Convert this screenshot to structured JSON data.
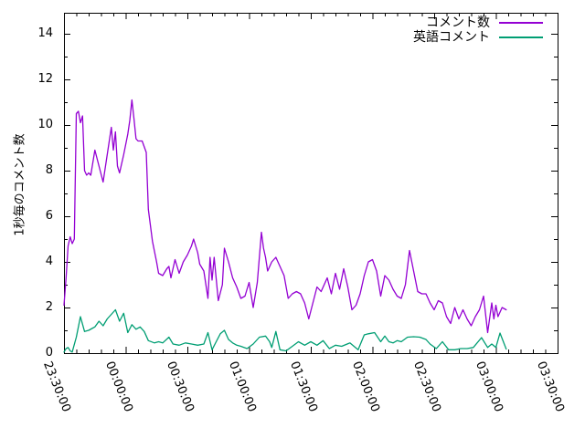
{
  "colors": {
    "background": "#ffffff",
    "axis": "#000000",
    "series1": "#9400d3",
    "series2": "#009e73"
  },
  "chart_data": {
    "type": "line",
    "title": "",
    "x_axis": {
      "tick_labels": [
        "23:30:00",
        "00:00:00",
        "00:30:00",
        "01:00:00",
        "01:30:00",
        "02:00:00",
        "02:30:00",
        "03:00:00",
        "03:30:00"
      ],
      "start": "23:30:00",
      "total_minutes": 240,
      "major_tick_minutes": 30,
      "minor_tick_minutes": 6
    },
    "y_axis": {
      "title": "1秒毎のコメント数",
      "tick_labels": [
        "0",
        "2",
        "4",
        "6",
        "8",
        "10",
        "12",
        "14"
      ],
      "ylim": [
        0,
        14.92
      ],
      "major_step": 2,
      "minor_step": 1
    },
    "legend": {
      "position": "top-right-inside",
      "entries": [
        {
          "label": "コメント数",
          "color": "#9400d3"
        },
        {
          "label": "英語コメント",
          "color": "#009e73"
        }
      ]
    },
    "grid": false,
    "points_unit": "minutes after 23:30:00",
    "series": [
      {
        "name": "コメント数",
        "color": "#9400d3",
        "points": [
          [
            0,
            2.1
          ],
          [
            1,
            3.3
          ],
          [
            2,
            4.7
          ],
          [
            3,
            5.1
          ],
          [
            4,
            4.8
          ],
          [
            5,
            5.0
          ],
          [
            6,
            10.5
          ],
          [
            7,
            10.6
          ],
          [
            8,
            10.1
          ],
          [
            9,
            10.4
          ],
          [
            10,
            8.0
          ],
          [
            11,
            7.8
          ],
          [
            12,
            7.9
          ],
          [
            13,
            7.8
          ],
          [
            15,
            8.9
          ],
          [
            17,
            8.2
          ],
          [
            19,
            7.5
          ],
          [
            21,
            8.7
          ],
          [
            23,
            9.9
          ],
          [
            24,
            8.9
          ],
          [
            25,
            9.7
          ],
          [
            26,
            8.2
          ],
          [
            27,
            7.9
          ],
          [
            29,
            8.7
          ],
          [
            31,
            9.6
          ],
          [
            32,
            10.2
          ],
          [
            33,
            11.1
          ],
          [
            34,
            10.3
          ],
          [
            35,
            9.4
          ],
          [
            36,
            9.3
          ],
          [
            38,
            9.3
          ],
          [
            40,
            8.8
          ],
          [
            41,
            6.3
          ],
          [
            43,
            4.9
          ],
          [
            45,
            4.0
          ],
          [
            46,
            3.5
          ],
          [
            48,
            3.4
          ],
          [
            50,
            3.7
          ],
          [
            51,
            3.8
          ],
          [
            52,
            3.3
          ],
          [
            54,
            4.1
          ],
          [
            56,
            3.5
          ],
          [
            58,
            4.0
          ],
          [
            60,
            4.3
          ],
          [
            62,
            4.7
          ],
          [
            63,
            5.0
          ],
          [
            65,
            4.4
          ],
          [
            66,
            3.9
          ],
          [
            68,
            3.6
          ],
          [
            70,
            2.4
          ],
          [
            71,
            4.2
          ],
          [
            72,
            3.2
          ],
          [
            73,
            4.2
          ],
          [
            75,
            2.3
          ],
          [
            77,
            3.0
          ],
          [
            78,
            4.6
          ],
          [
            80,
            4.0
          ],
          [
            82,
            3.3
          ],
          [
            84,
            2.9
          ],
          [
            86,
            2.4
          ],
          [
            88,
            2.5
          ],
          [
            90,
            3.1
          ],
          [
            92,
            2.0
          ],
          [
            94,
            3.1
          ],
          [
            96,
            5.3
          ],
          [
            97,
            4.6
          ],
          [
            98,
            4.2
          ],
          [
            99,
            3.6
          ],
          [
            101,
            4.0
          ],
          [
            103,
            4.2
          ],
          [
            105,
            3.8
          ],
          [
            107,
            3.4
          ],
          [
            109,
            2.4
          ],
          [
            111,
            2.6
          ],
          [
            113,
            2.7
          ],
          [
            115,
            2.6
          ],
          [
            117,
            2.2
          ],
          [
            119,
            1.5
          ],
          [
            121,
            2.2
          ],
          [
            123,
            2.9
          ],
          [
            125,
            2.7
          ],
          [
            128,
            3.3
          ],
          [
            130,
            2.6
          ],
          [
            132,
            3.5
          ],
          [
            134,
            2.8
          ],
          [
            136,
            3.7
          ],
          [
            138,
            2.9
          ],
          [
            140,
            1.9
          ],
          [
            142,
            2.1
          ],
          [
            144,
            2.6
          ],
          [
            146,
            3.4
          ],
          [
            148,
            4.0
          ],
          [
            150,
            4.1
          ],
          [
            152,
            3.6
          ],
          [
            154,
            2.5
          ],
          [
            156,
            3.4
          ],
          [
            158,
            3.2
          ],
          [
            160,
            2.8
          ],
          [
            162,
            2.5
          ],
          [
            164,
            2.4
          ],
          [
            166,
            3.0
          ],
          [
            168,
            4.5
          ],
          [
            170,
            3.6
          ],
          [
            172,
            2.7
          ],
          [
            174,
            2.6
          ],
          [
            176,
            2.6
          ],
          [
            178,
            2.2
          ],
          [
            180,
            1.9
          ],
          [
            182,
            2.3
          ],
          [
            184,
            2.2
          ],
          [
            186,
            1.6
          ],
          [
            188,
            1.3
          ],
          [
            190,
            2.0
          ],
          [
            192,
            1.5
          ],
          [
            194,
            1.9
          ],
          [
            196,
            1.5
          ],
          [
            198,
            1.2
          ],
          [
            200,
            1.6
          ],
          [
            202,
            1.9
          ],
          [
            204,
            2.5
          ],
          [
            206,
            0.9
          ],
          [
            208,
            2.2
          ],
          [
            209,
            1.5
          ],
          [
            210,
            2.1
          ],
          [
            211,
            1.6
          ],
          [
            213,
            2.0
          ],
          [
            215,
            1.9
          ]
        ]
      },
      {
        "name": "英語コメント",
        "color": "#009e73",
        "points": [
          [
            0,
            0.05
          ],
          [
            1,
            0.2
          ],
          [
            2,
            0.25
          ],
          [
            3,
            0.1
          ],
          [
            4,
            0.05
          ],
          [
            6,
            0.7
          ],
          [
            8,
            1.6
          ],
          [
            10,
            0.95
          ],
          [
            12,
            1.0
          ],
          [
            14,
            1.1
          ],
          [
            15,
            1.15
          ],
          [
            17,
            1.4
          ],
          [
            19,
            1.2
          ],
          [
            21,
            1.5
          ],
          [
            23,
            1.7
          ],
          [
            25,
            1.9
          ],
          [
            27,
            1.4
          ],
          [
            29,
            1.75
          ],
          [
            31,
            0.9
          ],
          [
            33,
            1.25
          ],
          [
            35,
            1.05
          ],
          [
            37,
            1.15
          ],
          [
            39,
            0.95
          ],
          [
            41,
            0.55
          ],
          [
            44,
            0.45
          ],
          [
            46,
            0.5
          ],
          [
            48,
            0.45
          ],
          [
            51,
            0.7
          ],
          [
            53,
            0.4
          ],
          [
            56,
            0.35
          ],
          [
            59,
            0.45
          ],
          [
            62,
            0.4
          ],
          [
            65,
            0.35
          ],
          [
            68,
            0.4
          ],
          [
            70,
            0.9
          ],
          [
            72,
            0.15
          ],
          [
            74,
            0.5
          ],
          [
            76,
            0.85
          ],
          [
            78,
            1.0
          ],
          [
            80,
            0.6
          ],
          [
            82,
            0.45
          ],
          [
            84,
            0.35
          ],
          [
            86,
            0.3
          ],
          [
            89,
            0.2
          ],
          [
            92,
            0.4
          ],
          [
            95,
            0.7
          ],
          [
            98,
            0.75
          ],
          [
            100,
            0.5
          ],
          [
            101,
            0.25
          ],
          [
            103,
            0.95
          ],
          [
            105,
            0.15
          ],
          [
            108,
            0.1
          ],
          [
            111,
            0.3
          ],
          [
            114,
            0.5
          ],
          [
            117,
            0.35
          ],
          [
            120,
            0.5
          ],
          [
            123,
            0.35
          ],
          [
            126,
            0.55
          ],
          [
            129,
            0.2
          ],
          [
            132,
            0.35
          ],
          [
            135,
            0.3
          ],
          [
            139,
            0.45
          ],
          [
            143,
            0.15
          ],
          [
            146,
            0.8
          ],
          [
            148,
            0.85
          ],
          [
            151,
            0.9
          ],
          [
            154,
            0.5
          ],
          [
            156,
            0.75
          ],
          [
            158,
            0.5
          ],
          [
            160,
            0.45
          ],
          [
            162,
            0.55
          ],
          [
            164,
            0.5
          ],
          [
            167,
            0.7
          ],
          [
            170,
            0.72
          ],
          [
            173,
            0.7
          ],
          [
            176,
            0.6
          ],
          [
            178,
            0.4
          ],
          [
            181,
            0.2
          ],
          [
            184,
            0.5
          ],
          [
            187,
            0.15
          ],
          [
            190,
            0.15
          ],
          [
            193,
            0.2
          ],
          [
            196,
            0.2
          ],
          [
            199,
            0.25
          ],
          [
            203,
            0.68
          ],
          [
            206,
            0.25
          ],
          [
            208,
            0.4
          ],
          [
            210,
            0.25
          ],
          [
            212,
            0.88
          ],
          [
            215,
            0.18
          ]
        ]
      }
    ]
  }
}
